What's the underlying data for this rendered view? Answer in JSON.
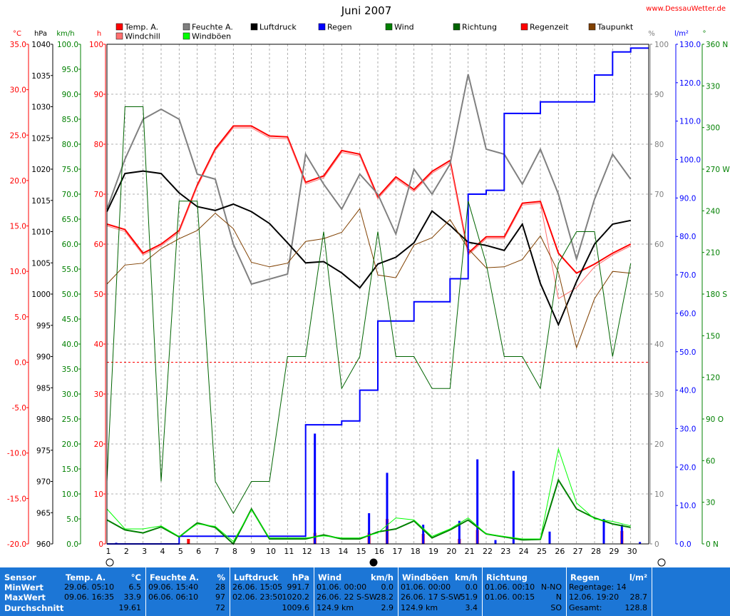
{
  "header": {
    "title": "Juni 2007",
    "site": "www.DessauWetter.de"
  },
  "colors": {
    "temp": "#ff0000",
    "windchill": "#ff7070",
    "humidity": "#808080",
    "pressure": "#000000",
    "rain": "#0000ff",
    "wind": "#008000",
    "gust": "#00ff00",
    "direction": "#006400",
    "raintime": "#ff0000",
    "dewpoint": "#804000",
    "statsbg": "#1c76d6"
  },
  "legend": [
    {
      "label": "Temp. A.",
      "color": "#ff0000"
    },
    {
      "label": "Windchill",
      "color": "#ff7070"
    },
    {
      "label": "Feuchte A.",
      "color": "#808080"
    },
    {
      "label": "Windböen",
      "color": "#00ff00"
    },
    {
      "label": "Luftdruck",
      "color": "#000000"
    },
    {
      "label": "Regen",
      "color": "#0000ff"
    },
    {
      "label": "Wind",
      "color": "#008000"
    },
    {
      "label": "Richtung",
      "color": "#006400"
    },
    {
      "label": "Regenzeit",
      "color": "#ff0000"
    },
    {
      "label": "Taupunkt",
      "color": "#804000"
    }
  ],
  "chart_data": {
    "type": "line",
    "title": "Juni 2007",
    "x": [
      1,
      2,
      3,
      4,
      5,
      6,
      7,
      8,
      9,
      10,
      11,
      12,
      13,
      14,
      15,
      16,
      17,
      18,
      19,
      20,
      21,
      22,
      23,
      24,
      25,
      26,
      27,
      28,
      29,
      30
    ],
    "axes": {
      "temp": {
        "unit": "°C",
        "min": -20,
        "max": 35,
        "ticks": [
          "35.0",
          "30.0",
          "25.0",
          "20.0",
          "15.0",
          "10.0",
          "5.0",
          "0.0",
          "-5.0",
          "-10.0",
          "-15.0",
          "-20.0"
        ]
      },
      "pressure": {
        "unit": "hPa",
        "min": 960,
        "max": 1040,
        "ticks": [
          "1040",
          "1035",
          "1030",
          "1025",
          "1020",
          "1015",
          "1010",
          "1005",
          "1000",
          "995",
          "990",
          "985",
          "980",
          "975",
          "970",
          "965",
          "960"
        ]
      },
      "wind": {
        "unit": "km/h",
        "min": 0,
        "max": 100,
        "ticks": [
          "100.0",
          "95.0",
          "90.0",
          "85.0",
          "80.0",
          "75.0",
          "70.0",
          "65.0",
          "60.0",
          "55.0",
          "50.0",
          "45.0",
          "40.0",
          "35.0",
          "30.0",
          "25.0",
          "20.0",
          "15.0",
          "10.0",
          "5.0",
          "0.0"
        ]
      },
      "hours": {
        "unit": "h",
        "min": 0,
        "max": 100,
        "ticks": [
          "100",
          "90",
          "80",
          "70",
          "60",
          "50",
          "40",
          "30",
          "20",
          "10",
          "0"
        ]
      },
      "humidity": {
        "unit": "%",
        "min": 0,
        "max": 100,
        "ticks": [
          "100",
          "90",
          "80",
          "70",
          "60",
          "50",
          "40",
          "30",
          "20",
          "10",
          "0"
        ]
      },
      "rain": {
        "unit": "l/m²",
        "min": 0,
        "max": 130,
        "ticks": [
          "130.0",
          "120.0",
          "110.0",
          "100.0",
          "90.0",
          "80.0",
          "70.0",
          "60.0",
          "50.0",
          "40.0",
          "30.0",
          "20.0",
          "10.0",
          "0.0"
        ]
      },
      "direction": {
        "unit": "°",
        "min": 0,
        "max": 360,
        "ticks": [
          "360 N",
          "330",
          "300",
          "270 W",
          "240",
          "210",
          "180 S",
          "150",
          "120",
          "90 O",
          "60",
          "30",
          "0 N"
        ]
      }
    },
    "series": [
      {
        "name": "Temp. A.",
        "axis": "temp",
        "color": "#ff0000",
        "width": 2,
        "values": [
          15.2,
          14.6,
          12.0,
          13.0,
          14.5,
          19.5,
          23.5,
          26.0,
          26.0,
          24.9,
          24.8,
          19.8,
          20.5,
          23.3,
          22.9,
          18.2,
          20.4,
          19.0,
          21.0,
          22.2,
          12.0,
          13.8,
          13.8,
          17.5,
          17.7,
          12.0,
          9.8,
          10.8,
          12.0,
          13.0
        ]
      },
      {
        "name": "Windchill",
        "axis": "temp",
        "color": "#ff7070",
        "width": 1,
        "values": [
          15.0,
          14.4,
          11.8,
          12.8,
          14.3,
          19.3,
          23.3,
          25.8,
          25.8,
          24.7,
          24.6,
          19.6,
          20.3,
          23.1,
          22.7,
          18.0,
          20.2,
          18.8,
          20.8,
          22.0,
          11.8,
          13.6,
          13.6,
          17.3,
          17.5,
          7.0,
          8.2,
          10.5,
          11.8,
          12.8
        ]
      },
      {
        "name": "Feuchte A.",
        "axis": "humidity",
        "color": "#808080",
        "width": 2,
        "values": [
          67,
          77,
          85,
          87,
          85,
          74,
          73,
          60,
          52,
          53,
          54,
          78,
          72,
          67,
          74,
          70,
          62,
          75,
          70,
          76,
          94,
          79,
          78,
          72,
          79,
          70,
          57,
          69,
          78,
          73
        ]
      },
      {
        "name": "Luftdruck",
        "axis": "pressure",
        "color": "#000000",
        "width": 2,
        "values": [
          1013.2,
          1019.3,
          1019.7,
          1019.3,
          1016.2,
          1014.0,
          1013.4,
          1014.4,
          1013.2,
          1011.3,
          1008.2,
          1005.0,
          1005.2,
          1003.4,
          1001.0,
          1004.8,
          1005.9,
          1008.2,
          1013.3,
          1011.0,
          1008.3,
          1007.8,
          1007.0,
          1011.2,
          1001.7,
          995.1,
          1002.0,
          1008.0,
          1011.2,
          1011.8
        ]
      },
      {
        "name": "Taupunkt",
        "axis": "temp",
        "color": "#804000",
        "width": 1,
        "values": [
          8.6,
          10.7,
          10.9,
          12.5,
          13.6,
          14.5,
          16.4,
          14.7,
          11.0,
          10.5,
          10.9,
          13.3,
          13.6,
          14.3,
          16.9,
          9.6,
          9.3,
          12.9,
          13.7,
          15.7,
          12.5,
          10.4,
          10.5,
          11.3,
          13.9,
          9.9,
          1.6,
          7.0,
          10.0,
          9.8
        ]
      },
      {
        "name": "Regen",
        "axis": "rain",
        "color": "#0000ff",
        "width": 2,
        "stepped": true,
        "values": [
          0,
          0,
          0,
          0,
          2,
          2,
          2,
          2,
          2,
          2,
          2,
          31,
          31,
          32,
          40,
          58,
          58,
          63,
          63,
          69,
          91,
          92,
          112,
          112,
          115,
          115,
          115,
          122,
          128,
          129
        ]
      },
      {
        "name": "Wind",
        "axis": "wind",
        "color": "#008000",
        "width": 2,
        "values": [
          4.8,
          2.8,
          2.2,
          3.4,
          1.4,
          4.2,
          3.3,
          0.0,
          7.0,
          1.0,
          1.0,
          1.0,
          1.8,
          1.0,
          1.0,
          2.4,
          3.0,
          4.6,
          1.2,
          2.8,
          4.8,
          2.0,
          1.4,
          0.8,
          0.9,
          12.8,
          7.0,
          5.2,
          4.0,
          3.3
        ]
      },
      {
        "name": "Windböen",
        "axis": "wind",
        "color": "#00ff00",
        "width": 1,
        "values": [
          7.0,
          3.0,
          3.0,
          3.6,
          1.5,
          4.0,
          3.5,
          0.5,
          6.8,
          1.2,
          1.2,
          1.2,
          1.6,
          1.2,
          1.2,
          2.2,
          5.2,
          4.8,
          1.5,
          3.0,
          5.2,
          2.0,
          1.5,
          1.0,
          1.0,
          19.0,
          8.2,
          5.0,
          4.5,
          3.6
        ]
      },
      {
        "name": "Richtung",
        "axis": "direction",
        "color": "#006400",
        "width": 1,
        "values": [
          45,
          315,
          315,
          45,
          247,
          247,
          45,
          22,
          45,
          45,
          135,
          135,
          225,
          112,
          135,
          225,
          135,
          135,
          112,
          112,
          247,
          202,
          135,
          135,
          112,
          202,
          225,
          225,
          135,
          202
        ]
      }
    ],
    "rain_bars": {
      "axis": "rain",
      "color": "#0000ff",
      "values": [
        0.3,
        0,
        0,
        0,
        0,
        0,
        0,
        0,
        0,
        0,
        0,
        28.7,
        0,
        0,
        8,
        18.5,
        0,
        5,
        0,
        6,
        22,
        1,
        19,
        0,
        3.2,
        0,
        0,
        6.5,
        5,
        0.5
      ]
    },
    "raintime_bars": {
      "axis": "hours",
      "color": "#ff0000",
      "values": [
        0,
        0,
        0,
        0,
        1,
        0,
        0,
        0,
        0,
        0,
        0,
        2.2,
        0,
        0,
        2.2,
        5,
        0,
        2,
        0,
        1,
        2.8,
        0,
        0,
        0,
        0,
        0,
        0,
        0,
        2.6,
        0
      ]
    },
    "reference_lines": [
      {
        "axis": "temp",
        "value": 0,
        "color": "#ff0000",
        "dashed": true
      }
    ],
    "grid": true
  },
  "stats": {
    "row_labels": [
      "Sensor",
      "MinWert",
      "MaxWert",
      "Durchschnitt"
    ],
    "sections": [
      {
        "title": "Temp. A.",
        "unit": "°C",
        "min_time": "29.06.  05:10",
        "min": "6.5",
        "max_time": "09.06.  16:35",
        "max": "33.9",
        "avg_left": "",
        "avg": "19.61"
      },
      {
        "title": "Feuchte A.",
        "unit": "%",
        "min_time": "09.06.  15:40",
        "min": "28",
        "max_time": "06.06.  06:10",
        "max": "97",
        "avg_left": "",
        "avg": "72"
      },
      {
        "title": "Luftdruck",
        "unit": "hPa",
        "min_time": "26.06.  15:05",
        "min": "991.7",
        "max_time": "02.06.  23:50",
        "max": "1020.2",
        "avg_left": "",
        "avg": "1009.6"
      },
      {
        "title": "Wind",
        "unit": "km/h",
        "min_time": "01.06.  00:00",
        "min": "0.0",
        "max_time": "26.06.  22 S-SW",
        "max": "28.2",
        "avg_left": "124.9 km",
        "avg": "2.9"
      },
      {
        "title": "Windböen",
        "unit": "km/h",
        "min_time": "01.06.  00:00",
        "min": "0.0",
        "max_time": "26.06.  17 S-SW",
        "max": "51.9",
        "avg_left": "124.9 km",
        "avg": "3.4"
      },
      {
        "title": "Richtung",
        "unit": "",
        "min_time": "01.06.  00:10",
        "min": "N-NO",
        "max_time": "01.06.  00:15",
        "max": "N",
        "avg_left": "",
        "avg": "SO"
      },
      {
        "title": "Regen",
        "unit": "l/m²",
        "min_time": "Regentage: 14",
        "min": "",
        "max_time": "12.06.  19:20",
        "max": "28.7",
        "avg_left": "Gesamt:",
        "avg": "128.8"
      }
    ]
  }
}
